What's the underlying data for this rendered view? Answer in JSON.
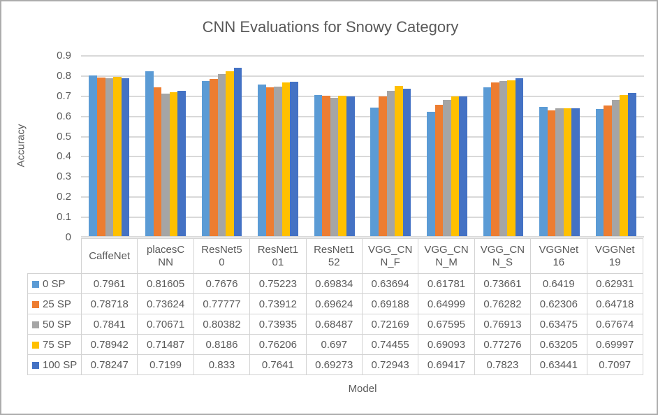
{
  "chart_data": {
    "type": "bar",
    "title": "CNN Evaluations for Snowy Category",
    "xlabel": "Model",
    "ylabel": "Accuracy",
    "ylim": [
      0,
      0.9
    ],
    "ytick_labels": [
      "0.9",
      "0.8",
      "0.7",
      "0.6",
      "0.5",
      "0.4",
      "0.3",
      "0.2",
      "0.1",
      "0"
    ],
    "grid": "horizontal",
    "legend_position": "data-table-left-column",
    "categories": [
      "CaffeNet",
      "placesCNN",
      "ResNet50",
      "ResNet101",
      "ResNet152",
      "VGG_CNN_F",
      "VGG_CNN_M",
      "VGG_CNN_S",
      "VGGNet16",
      "VGGNet19"
    ],
    "series": [
      {
        "name": "0 SP",
        "color": "#5b9bd5",
        "values": [
          0.7961,
          0.81605,
          0.7676,
          0.75223,
          0.69834,
          0.63694,
          0.61781,
          0.73661,
          0.6419,
          0.62931
        ]
      },
      {
        "name": "25 SP",
        "color": "#ed7d31",
        "values": [
          0.78718,
          0.73624,
          0.77777,
          0.73912,
          0.69624,
          0.69188,
          0.64999,
          0.76282,
          0.62306,
          0.64718
        ]
      },
      {
        "name": "50 SP",
        "color": "#a5a5a5",
        "values": [
          0.7841,
          0.70671,
          0.80382,
          0.73935,
          0.68487,
          0.72169,
          0.67595,
          0.76913,
          0.63475,
          0.67674
        ]
      },
      {
        "name": "75 SP",
        "color": "#ffc000",
        "values": [
          0.78942,
          0.71487,
          0.8186,
          0.76206,
          0.697,
          0.74455,
          0.69093,
          0.77276,
          0.63205,
          0.69997
        ]
      },
      {
        "name": "100 SP",
        "color": "#4472c4",
        "values": [
          0.78247,
          0.7199,
          0.833,
          0.7641,
          0.69273,
          0.72943,
          0.69417,
          0.7823,
          0.63441,
          0.7097
        ]
      }
    ]
  },
  "colors": {
    "text": "#595959",
    "gridline": "#d9d9d9",
    "table_border": "#d3d3d3",
    "frame_border": "#acacac",
    "background": "#ffffff"
  }
}
